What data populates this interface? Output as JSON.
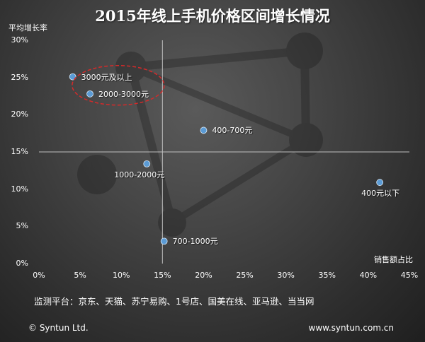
{
  "chart_data": {
    "type": "scatter",
    "title": "2015年线上手机价格区间增长情况",
    "xlabel": "销售额占比",
    "ylabel": "平均增长率",
    "xlim": [
      0,
      45
    ],
    "ylim": [
      0,
      30
    ],
    "xticks": [
      "0%",
      "5%",
      "10%",
      "15%",
      "20%",
      "25%",
      "30%",
      "35%",
      "40%",
      "45%"
    ],
    "yticks": [
      "0%",
      "5%",
      "10%",
      "15%",
      "20%",
      "25%",
      "30%"
    ],
    "x_cross_line": 15,
    "y_cross_line": 15,
    "grid": false,
    "points": [
      {
        "label": "3000元及以上",
        "x": 4.1,
        "y": 25.1
      },
      {
        "label": "2000-3000元",
        "x": 6.2,
        "y": 22.8
      },
      {
        "label": "400-700元",
        "x": 20.0,
        "y": 17.9
      },
      {
        "label": "1000-2000元",
        "x": 13.1,
        "y": 13.4
      },
      {
        "label": "400元以下",
        "x": 41.4,
        "y": 10.9
      },
      {
        "label": "700-1000元",
        "x": 15.2,
        "y": 3.0
      }
    ],
    "highlight": [
      "3000元及以上",
      "2000-3000元"
    ]
  },
  "footer": {
    "platforms": "监测平台：京东、天猫、苏宁易购、1号店、国美在线、亚马逊、当当网",
    "copyright": "© Syntun Ltd.",
    "website": "www.syntun.com.cn"
  },
  "colors": {
    "point": "#5b9bd5",
    "highlight_ellipse": "#d42a2a",
    "axis": "#bfbfbf"
  }
}
